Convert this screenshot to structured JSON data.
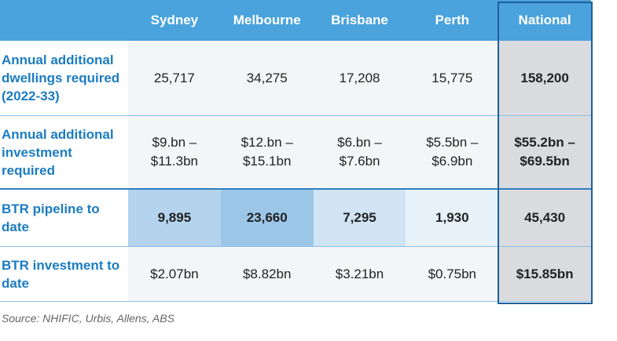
{
  "table": {
    "columns": [
      "Sydney",
      "Melbourne",
      "Brisbane",
      "Perth",
      "National"
    ],
    "rows": [
      {
        "label": "Annual additional dwellings required (2022-33)",
        "cells": [
          "25,717",
          "34,275",
          "17,208",
          "15,775",
          "158,200"
        ]
      },
      {
        "label": "Annual additional investment required",
        "cells": [
          "$9.bn – $11.3bn",
          "$12.bn – $15.1bn",
          "$6.bn – $7.6bn",
          "$5.5bn – $6.9bn",
          "$55.2bn – $69.5bn"
        ]
      },
      {
        "label": "BTR pipeline to date",
        "cells": [
          "9,895",
          "23,660",
          "7,295",
          "1,930",
          "45,430"
        ]
      },
      {
        "label": "BTR investment to date",
        "cells": [
          "$2.07bn",
          "$8.82bn",
          "$3.21bn",
          "$0.75bn",
          "$15.85bn"
        ]
      }
    ]
  },
  "source": "Source: NHIFIC, Urbis, Allens, ABS"
}
